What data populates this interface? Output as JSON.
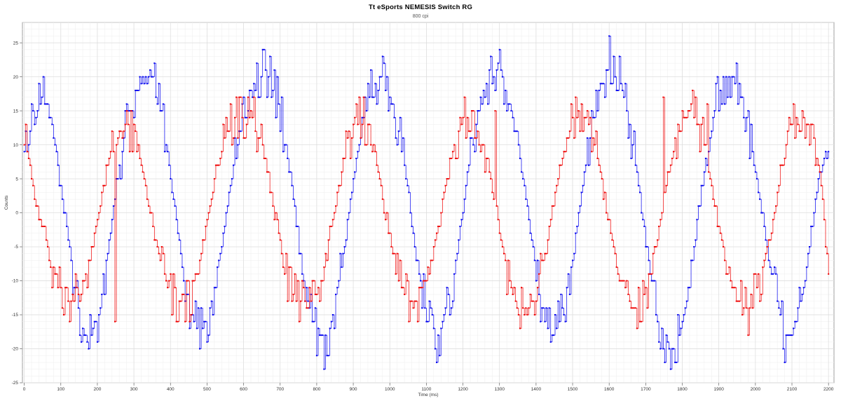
{
  "chart_data": {
    "type": "line",
    "title": "Tt eSports NEMESIS Switch RG",
    "subtitle": "800 cpi",
    "xlabel": "Time (ms)",
    "ylabel": "Counts",
    "xlim": [
      -5,
      2215
    ],
    "ylim": [
      -25,
      28
    ],
    "x_ticks": [
      0,
      100,
      200,
      300,
      400,
      500,
      600,
      700,
      800,
      900,
      1000,
      1100,
      1200,
      1300,
      1400,
      1500,
      1600,
      1700,
      1800,
      1900,
      2000,
      2100,
      2200
    ],
    "y_ticks": [
      -25,
      -20,
      -15,
      -10,
      -5,
      0,
      5,
      10,
      15,
      20,
      25
    ],
    "grid": true,
    "legend": "none",
    "series": [
      {
        "color": "#0000ee",
        "sample_interval_ms": 4,
        "points": [
          [
            0,
            8
          ],
          [
            25,
            14
          ],
          [
            50,
            17
          ],
          [
            75,
            13
          ],
          [
            100,
            4
          ],
          [
            125,
            -6
          ],
          [
            150,
            -15
          ],
          [
            175,
            -19
          ],
          [
            200,
            -16
          ],
          [
            225,
            -7
          ],
          [
            250,
            3
          ],
          [
            275,
            12
          ],
          [
            300,
            17
          ],
          [
            325,
            20
          ],
          [
            350,
            20
          ],
          [
            375,
            15
          ],
          [
            400,
            6
          ],
          [
            425,
            -5
          ],
          [
            450,
            -14
          ],
          [
            475,
            -17
          ],
          [
            500,
            -16
          ],
          [
            525,
            -10
          ],
          [
            550,
            -1
          ],
          [
            575,
            8
          ],
          [
            600,
            14
          ],
          [
            625,
            18
          ],
          [
            650,
            21
          ],
          [
            675,
            20
          ],
          [
            700,
            15
          ],
          [
            725,
            6
          ],
          [
            750,
            -4
          ],
          [
            775,
            -13
          ],
          [
            800,
            -18
          ],
          [
            825,
            -19
          ],
          [
            850,
            -14
          ],
          [
            875,
            -5
          ],
          [
            900,
            5
          ],
          [
            925,
            13
          ],
          [
            950,
            18
          ],
          [
            975,
            20
          ],
          [
            1000,
            18
          ],
          [
            1025,
            12
          ],
          [
            1050,
            3
          ],
          [
            1075,
            -7
          ],
          [
            1100,
            -15
          ],
          [
            1125,
            -19
          ],
          [
            1150,
            -16
          ],
          [
            1175,
            -9
          ],
          [
            1200,
            1
          ],
          [
            1225,
            10
          ],
          [
            1250,
            17
          ],
          [
            1275,
            20
          ],
          [
            1300,
            21
          ],
          [
            1325,
            17
          ],
          [
            1350,
            10
          ],
          [
            1375,
            1
          ],
          [
            1400,
            -9
          ],
          [
            1425,
            -17
          ],
          [
            1450,
            -18
          ],
          [
            1475,
            -14
          ],
          [
            1500,
            -7
          ],
          [
            1525,
            3
          ],
          [
            1550,
            12
          ],
          [
            1575,
            18
          ],
          [
            1600,
            22
          ],
          [
            1625,
            21
          ],
          [
            1650,
            15
          ],
          [
            1675,
            6
          ],
          [
            1700,
            -4
          ],
          [
            1725,
            -13
          ],
          [
            1750,
            -19
          ],
          [
            1775,
            -20
          ],
          [
            1800,
            -16
          ],
          [
            1825,
            -8
          ],
          [
            1850,
            2
          ],
          [
            1875,
            11
          ],
          [
            1900,
            18
          ],
          [
            1925,
            20
          ],
          [
            1950,
            19
          ],
          [
            1975,
            14
          ],
          [
            2000,
            6
          ],
          [
            2025,
            -3
          ],
          [
            2050,
            -11
          ],
          [
            2075,
            -17
          ],
          [
            2100,
            -18
          ],
          [
            2125,
            -13
          ],
          [
            2150,
            -4
          ],
          [
            2175,
            6
          ],
          [
            2200,
            9
          ]
        ],
        "spikes": [
          [
            1300,
            24
          ],
          [
            1600,
            26
          ],
          [
            820,
            -23
          ],
          [
            2080,
            -22
          ],
          [
            2205,
            9
          ]
        ]
      },
      {
        "color": "#ee0000",
        "sample_interval_ms": 4,
        "points": [
          [
            0,
            11
          ],
          [
            25,
            4
          ],
          [
            50,
            -2
          ],
          [
            75,
            -8
          ],
          [
            100,
            -11
          ],
          [
            125,
            -13
          ],
          [
            150,
            -12
          ],
          [
            175,
            -8
          ],
          [
            200,
            -1
          ],
          [
            225,
            7
          ],
          [
            250,
            11
          ],
          [
            275,
            13
          ],
          [
            300,
            12
          ],
          [
            325,
            6
          ],
          [
            350,
            -2
          ],
          [
            375,
            -8
          ],
          [
            400,
            -12
          ],
          [
            425,
            -13
          ],
          [
            450,
            -13
          ],
          [
            475,
            -8
          ],
          [
            500,
            -1
          ],
          [
            525,
            6
          ],
          [
            550,
            11
          ],
          [
            575,
            14
          ],
          [
            600,
            14
          ],
          [
            625,
            14
          ],
          [
            650,
            10
          ],
          [
            675,
            3
          ],
          [
            700,
            -5
          ],
          [
            725,
            -11
          ],
          [
            750,
            -13
          ],
          [
            775,
            -14
          ],
          [
            800,
            -12
          ],
          [
            825,
            -7
          ],
          [
            850,
            1
          ],
          [
            875,
            8
          ],
          [
            900,
            13
          ],
          [
            925,
            14
          ],
          [
            950,
            11
          ],
          [
            975,
            4
          ],
          [
            1000,
            -4
          ],
          [
            1025,
            -10
          ],
          [
            1050,
            -13
          ],
          [
            1075,
            -13
          ],
          [
            1100,
            -10
          ],
          [
            1125,
            -4
          ],
          [
            1150,
            3
          ],
          [
            1175,
            10
          ],
          [
            1200,
            14
          ],
          [
            1225,
            15
          ],
          [
            1250,
            12
          ],
          [
            1275,
            5
          ],
          [
            1300,
            -3
          ],
          [
            1325,
            -10
          ],
          [
            1350,
            -14
          ],
          [
            1375,
            -14
          ],
          [
            1400,
            -12
          ],
          [
            1425,
            -6
          ],
          [
            1450,
            2
          ],
          [
            1475,
            9
          ],
          [
            1500,
            14
          ],
          [
            1525,
            15
          ],
          [
            1550,
            13
          ],
          [
            1575,
            6
          ],
          [
            1600,
            -2
          ],
          [
            1625,
            -9
          ],
          [
            1650,
            -13
          ],
          [
            1675,
            -14
          ],
          [
            1700,
            -12
          ],
          [
            1725,
            -6
          ],
          [
            1750,
            2
          ],
          [
            1775,
            9
          ],
          [
            1800,
            14
          ],
          [
            1825,
            15
          ],
          [
            1850,
            12
          ],
          [
            1875,
            6
          ],
          [
            1900,
            -2
          ],
          [
            1925,
            -9
          ],
          [
            1950,
            -13
          ],
          [
            1975,
            -14
          ],
          [
            2000,
            -12
          ],
          [
            2025,
            -7
          ],
          [
            2050,
            0
          ],
          [
            2075,
            8
          ],
          [
            2100,
            13
          ],
          [
            2125,
            15
          ],
          [
            2150,
            13
          ],
          [
            2175,
            7
          ],
          [
            2200,
            -9
          ]
        ],
        "spikes": [
          [
            280,
            15
          ],
          [
            250,
            -16
          ],
          [
            1290,
            15
          ],
          [
            1870,
            16
          ],
          [
            1750,
            17
          ],
          [
            1980,
            -18
          ]
        ]
      }
    ]
  }
}
